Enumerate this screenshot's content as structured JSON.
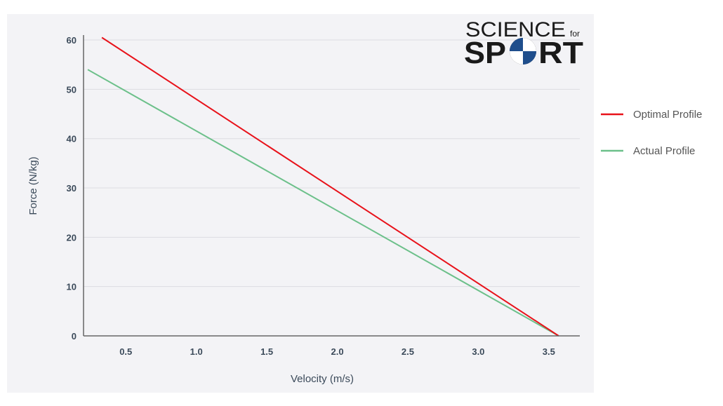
{
  "chart_data": {
    "type": "line",
    "title": "",
    "xlabel": "Velocity (m/s)",
    "ylabel": "Force (N/kg)",
    "xlim": [
      0.2,
      3.72
    ],
    "ylim": [
      0,
      61
    ],
    "x_ticks": [
      0.5,
      1.0,
      1.5,
      2.0,
      2.5,
      3.0,
      3.5
    ],
    "x_tick_labels": [
      "0.5",
      "1.0",
      "1.5",
      "2.0",
      "2.5",
      "3.0",
      "3.5"
    ],
    "y_ticks": [
      0,
      10,
      20,
      30,
      40,
      50,
      60
    ],
    "y_tick_labels": [
      "0",
      "10",
      "20",
      "30",
      "40",
      "50",
      "60"
    ],
    "grid": true,
    "legend_position": "right",
    "series": [
      {
        "name": "Optimal Profile",
        "color": "#e8121a",
        "x": [
          0.33,
          3.57
        ],
        "y": [
          60.5,
          0
        ]
      },
      {
        "name": "Actual Profile",
        "color": "#6cc08a",
        "x": [
          0.23,
          3.57
        ],
        "y": [
          54,
          0
        ]
      }
    ]
  },
  "logo": {
    "line1": "SCIENCE",
    "small": "for",
    "line2_start": "SP",
    "line2_end": "RT",
    "icon": "sport-ball-icon",
    "icon_colors": [
      "#1f4e8c",
      "#1a1a1a",
      "#ffffff"
    ]
  },
  "colors": {
    "plot_background": "#f3f3f6",
    "grid": "#dcdce2",
    "axis": "#555555"
  }
}
